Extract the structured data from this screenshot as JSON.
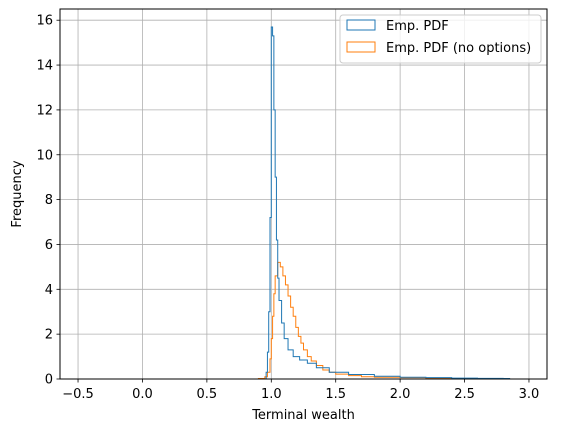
{
  "chart_data": {
    "type": "step-histogram",
    "title": "",
    "xlabel": "Terminal wealth",
    "ylabel": "Frequency",
    "xlim": [
      -0.64,
      3.14
    ],
    "ylim": [
      0,
      16.5
    ],
    "xticks": [
      -0.5,
      0.0,
      0.5,
      1.0,
      1.5,
      2.0,
      2.5,
      3.0
    ],
    "xtick_labels": [
      "−0.5",
      "0.0",
      "0.5",
      "1.0",
      "1.5",
      "2.0",
      "2.5",
      "3.0"
    ],
    "yticks": [
      0,
      2,
      4,
      6,
      8,
      10,
      12,
      14,
      16
    ],
    "ytick_labels": [
      "0",
      "2",
      "4",
      "6",
      "8",
      "10",
      "12",
      "14",
      "16"
    ],
    "grid": true,
    "legend_position": "upper right",
    "series": [
      {
        "name": "Emp. PDF",
        "color": "#1f77b4",
        "points": [
          [
            -0.5,
            0
          ],
          [
            0.95,
            0
          ],
          [
            0.96,
            0.3
          ],
          [
            0.97,
            1.2
          ],
          [
            0.98,
            3.0
          ],
          [
            0.99,
            7.2
          ],
          [
            1.0,
            15.7
          ],
          [
            1.01,
            15.3
          ],
          [
            1.02,
            12.0
          ],
          [
            1.03,
            9.0
          ],
          [
            1.04,
            6.2
          ],
          [
            1.05,
            4.5
          ],
          [
            1.06,
            3.5
          ],
          [
            1.08,
            2.5
          ],
          [
            1.1,
            1.8
          ],
          [
            1.13,
            1.3
          ],
          [
            1.17,
            1.0
          ],
          [
            1.22,
            0.85
          ],
          [
            1.28,
            0.7
          ],
          [
            1.35,
            0.5
          ],
          [
            1.45,
            0.3
          ],
          [
            1.6,
            0.2
          ],
          [
            1.8,
            0.12
          ],
          [
            2.0,
            0.08
          ],
          [
            2.2,
            0.06
          ],
          [
            2.4,
            0.04
          ],
          [
            2.6,
            0.03
          ],
          [
            2.8,
            0.02
          ],
          [
            2.85,
            0
          ]
        ]
      },
      {
        "name": "Emp. PDF (no options)",
        "color": "#ff7f0e",
        "points": [
          [
            -0.5,
            0
          ],
          [
            0.8,
            0
          ],
          [
            0.9,
            0.02
          ],
          [
            0.95,
            0.1
          ],
          [
            0.97,
            0.3
          ],
          [
            0.99,
            0.9
          ],
          [
            1.0,
            1.8
          ],
          [
            1.01,
            2.8
          ],
          [
            1.02,
            3.8
          ],
          [
            1.03,
            4.6
          ],
          [
            1.05,
            5.2
          ],
          [
            1.07,
            5.0
          ],
          [
            1.09,
            4.6
          ],
          [
            1.11,
            4.2
          ],
          [
            1.13,
            3.7
          ],
          [
            1.15,
            3.2
          ],
          [
            1.17,
            2.8
          ],
          [
            1.19,
            2.3
          ],
          [
            1.21,
            1.9
          ],
          [
            1.23,
            1.6
          ],
          [
            1.25,
            1.3
          ],
          [
            1.28,
            1.0
          ],
          [
            1.31,
            0.8
          ],
          [
            1.35,
            0.6
          ],
          [
            1.4,
            0.4
          ],
          [
            1.45,
            0.3
          ],
          [
            1.5,
            0.22
          ],
          [
            1.6,
            0.15
          ],
          [
            1.7,
            0.1
          ],
          [
            1.8,
            0.08
          ],
          [
            2.0,
            0.06
          ],
          [
            2.2,
            0.04
          ],
          [
            2.4,
            0.02
          ],
          [
            2.6,
            0
          ]
        ]
      }
    ]
  }
}
